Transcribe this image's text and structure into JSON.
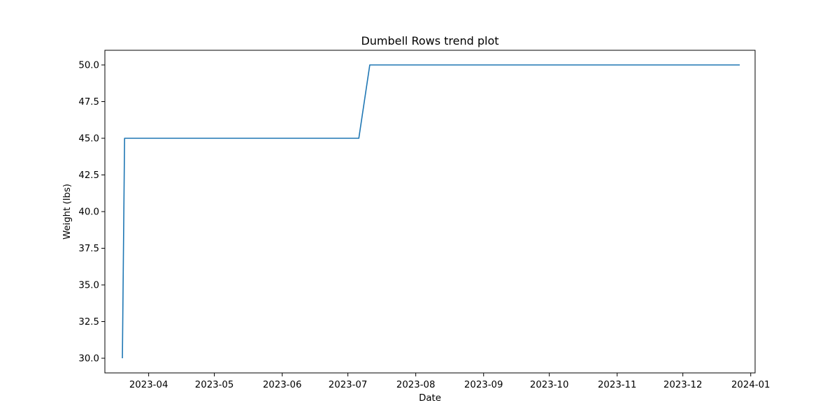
{
  "chart_data": {
    "type": "line",
    "title": "Dumbell Rows trend plot",
    "xlabel": "Date",
    "ylabel": "Weight (lbs)",
    "x_tick_labels": [
      "2023-04",
      "2023-05",
      "2023-06",
      "2023-07",
      "2023-08",
      "2023-09",
      "2023-10",
      "2023-11",
      "2023-12",
      "2024-01"
    ],
    "y_tick_labels": [
      "30.0",
      "32.5",
      "35.0",
      "37.5",
      "40.0",
      "42.5",
      "45.0",
      "47.5",
      "50.0"
    ],
    "xlim": [
      "2023-03-12",
      "2024-01-03"
    ],
    "ylim": [
      29.0,
      51.0
    ],
    "grid": false,
    "legend": "none",
    "series": [
      {
        "color": "#1f77b4",
        "x": [
          "2023-03-20",
          "2023-03-21",
          "2023-07-06",
          "2023-07-11",
          "2023-12-27"
        ],
        "y": [
          30.0,
          45.0,
          45.0,
          50.0,
          50.0
        ]
      }
    ]
  }
}
